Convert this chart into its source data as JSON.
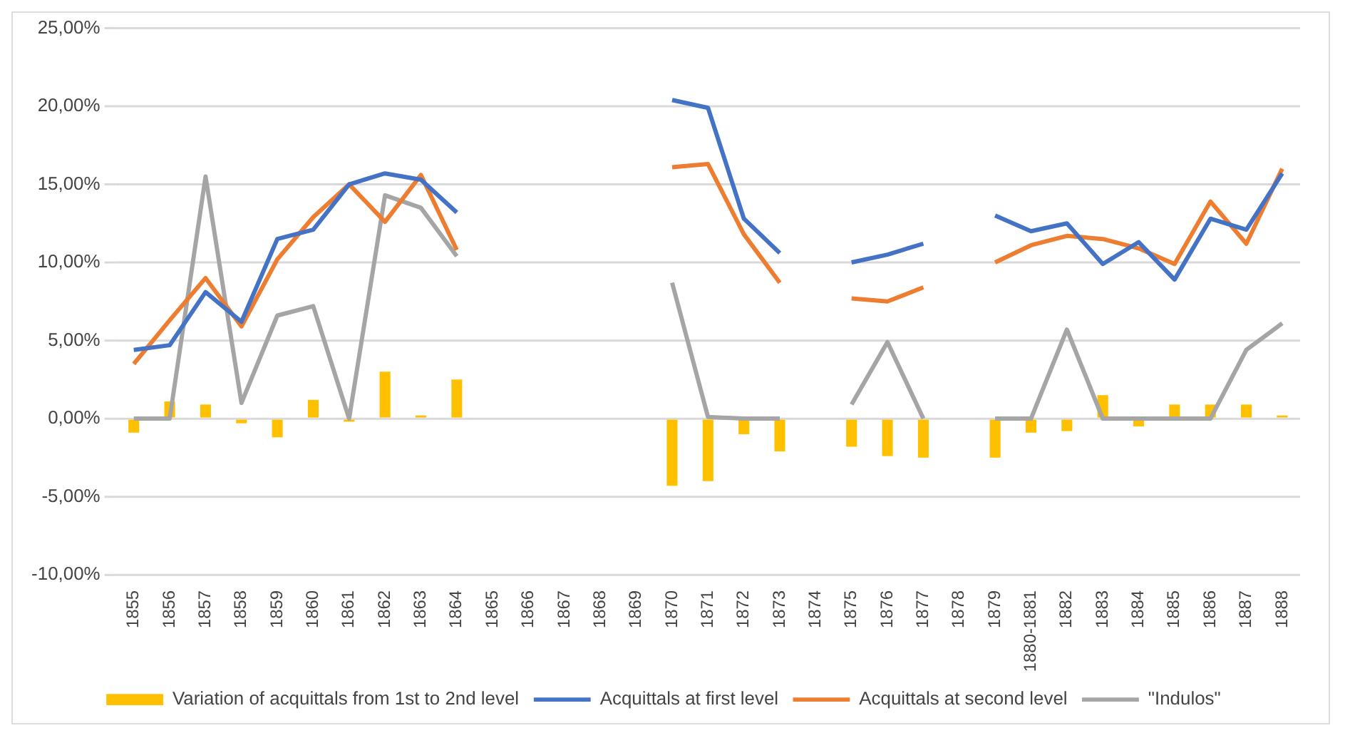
{
  "chart_data": {
    "type": "line",
    "categories": [
      "1855",
      "1856",
      "1857",
      "1858",
      "1859",
      "1860",
      "1861",
      "1862",
      "1863",
      "1864",
      "1865",
      "1866",
      "1867",
      "1868",
      "1869",
      "1870",
      "1871",
      "1872",
      "1873",
      "1874",
      "1875",
      "1876",
      "1877",
      "1878",
      "1879",
      "1880-1881",
      "1882",
      "1883",
      "1884",
      "1885",
      "1886",
      "1887",
      "1888"
    ],
    "series": [
      {
        "name": "Variation of acquittals from 1st to 2nd level",
        "type": "bar",
        "color": "#ffc000",
        "values": [
          -0.9,
          1.1,
          0.9,
          -0.3,
          -1.2,
          1.2,
          -0.2,
          3.0,
          0.2,
          2.5,
          null,
          null,
          null,
          null,
          null,
          -4.3,
          -4.0,
          -1.0,
          -2.1,
          null,
          -1.8,
          -2.4,
          -2.5,
          null,
          -2.5,
          -0.9,
          -0.8,
          1.5,
          -0.5,
          0.9,
          0.9,
          0.9,
          0.2
        ]
      },
      {
        "name": "Acquittals at first level",
        "color": "#4472c4",
        "values": [
          4.4,
          4.7,
          8.1,
          6.2,
          11.5,
          12.1,
          15.0,
          15.7,
          15.3,
          13.2,
          null,
          null,
          null,
          null,
          null,
          20.4,
          19.9,
          12.8,
          10.6,
          null,
          10.0,
          10.5,
          11.2,
          null,
          13.0,
          12.0,
          12.5,
          9.9,
          11.3,
          8.9,
          12.8,
          12.1,
          15.7
        ]
      },
      {
        "name": "Acquittals at second level",
        "color": "#ed7d31",
        "values": [
          3.5,
          6.3,
          9.0,
          5.9,
          10.2,
          12.9,
          15.0,
          12.6,
          15.6,
          10.8,
          null,
          null,
          null,
          null,
          null,
          16.1,
          16.3,
          11.8,
          8.7,
          null,
          7.7,
          7.5,
          8.4,
          null,
          10.0,
          11.1,
          11.7,
          11.5,
          10.9,
          9.9,
          13.9,
          11.2,
          16.0
        ]
      },
      {
        "name": "\"Indulos\"",
        "color": "#a5a5a5",
        "values": [
          0,
          0,
          15.5,
          1.0,
          6.6,
          7.2,
          0,
          14.3,
          13.5,
          10.4,
          null,
          null,
          null,
          null,
          null,
          8.7,
          0.1,
          0,
          0,
          null,
          0.9,
          4.9,
          0,
          null,
          0,
          0,
          5.7,
          0,
          0,
          0,
          0,
          4.4,
          6.1
        ]
      }
    ],
    "ylim": [
      -10,
      25
    ],
    "yticks": [
      {
        "value": -10,
        "label": "-10,00%"
      },
      {
        "value": -5,
        "label": "-5,00%"
      },
      {
        "value": 0,
        "label": "0,00%"
      },
      {
        "value": 5,
        "label": "5,00%"
      },
      {
        "value": 10,
        "label": "10,00%"
      },
      {
        "value": 15,
        "label": "15,00%"
      },
      {
        "value": 20,
        "label": "20,00%"
      },
      {
        "value": 25,
        "label": "25,00%"
      }
    ],
    "grid": "y",
    "legend": "bottom",
    "marker": "none"
  }
}
